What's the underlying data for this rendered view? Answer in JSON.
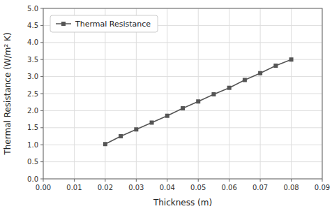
{
  "chart_data": {
    "type": "line",
    "x": [
      0.02,
      0.025,
      0.03,
      0.035,
      0.04,
      0.045,
      0.05,
      0.055,
      0.06,
      0.065,
      0.07,
      0.075,
      0.08
    ],
    "series": [
      {
        "name": "Thermal Resistance",
        "color": "#555555",
        "marker": "square",
        "line_style": "solid",
        "values": [
          1.02,
          1.25,
          1.45,
          1.65,
          1.85,
          2.07,
          2.27,
          2.48,
          2.67,
          2.9,
          3.1,
          3.32,
          3.5
        ]
      }
    ],
    "xlabel": "Thickness (m)",
    "ylabel": "Thermal Resistance (W/m² K)",
    "xlim": [
      0.0,
      0.09
    ],
    "ylim": [
      0.0,
      5.0
    ],
    "xticks": [
      {
        "value": 0.0,
        "label": "0.00"
      },
      0.01,
      0.02,
      0.03,
      0.04,
      0.05,
      0.06,
      0.07,
      0.08,
      0.09
    ],
    "yticks": [
      {
        "value": 0.0,
        "label": "0.0"
      },
      0.5,
      {
        "value": 1.0,
        "label": "1.0"
      },
      1.5,
      {
        "value": 2.0,
        "label": "2.0"
      },
      2.5,
      {
        "value": 3.0,
        "label": "3.0"
      },
      3.5,
      {
        "value": 4.0,
        "label": "4.0"
      },
      4.5,
      {
        "value": 5.0,
        "label": "5.0"
      }
    ],
    "grid": true,
    "legend": "upper left"
  }
}
